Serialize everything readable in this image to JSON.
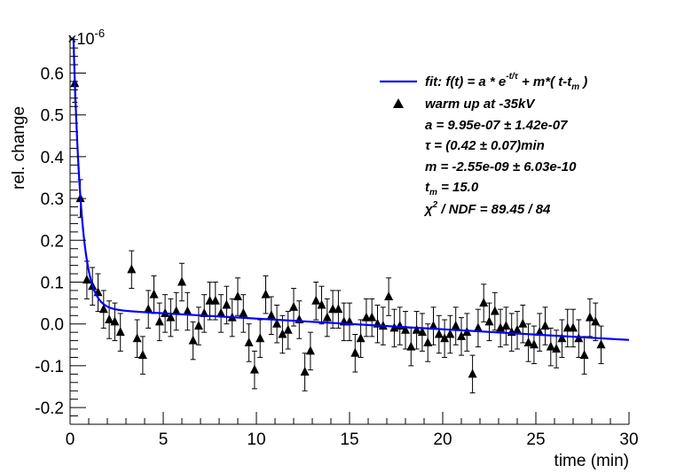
{
  "chart_data": {
    "type": "scatter",
    "title": "",
    "xlabel": "time (min)",
    "ylabel": "rel. change",
    "y_multiplier": "×10",
    "y_multiplier_exp": "-6",
    "xlim": [
      0,
      30
    ],
    "ylim": [
      -0.24,
      0.69
    ],
    "xticks": [
      0,
      5,
      10,
      15,
      20,
      25,
      30
    ],
    "xtick_labels": [
      "0",
      "5",
      "10",
      "15",
      "20",
      "25",
      "30"
    ],
    "yticks": [
      -0.2,
      -0.1,
      0.0,
      0.1,
      0.2,
      0.3,
      0.4,
      0.5,
      0.6
    ],
    "ytick_labels": [
      "-0.2",
      "-0.1",
      "0.0",
      "0.1",
      "0.2",
      "0.3",
      "0.4",
      "0.5",
      "0.6"
    ],
    "grid": false,
    "legend_position": "top-right",
    "fit": {
      "name": "fit",
      "color": "#0000ff",
      "a": 0.995,
      "tau": 0.42,
      "m": -0.00255,
      "tm": 15.0
    },
    "series": [
      {
        "name": "warm up at -35kV",
        "marker": "triangle",
        "color": "#000000",
        "points": [
          {
            "x": 0.25,
            "y": 0.575,
            "err": 0.045
          },
          {
            "x": 0.55,
            "y": 0.3,
            "err": 0.045
          },
          {
            "x": 0.9,
            "y": 0.105,
            "err": 0.045
          },
          {
            "x": 1.2,
            "y": 0.09,
            "err": 0.045
          },
          {
            "x": 1.5,
            "y": 0.075,
            "err": 0.045
          },
          {
            "x": 1.8,
            "y": 0.035,
            "err": 0.045
          },
          {
            "x": 2.1,
            "y": 0.01,
            "err": 0.045
          },
          {
            "x": 2.4,
            "y": 0.005,
            "err": 0.045
          },
          {
            "x": 2.7,
            "y": -0.02,
            "err": 0.045
          },
          {
            "x": 3.3,
            "y": 0.13,
            "err": 0.045
          },
          {
            "x": 3.6,
            "y": -0.035,
            "err": 0.045
          },
          {
            "x": 3.9,
            "y": -0.075,
            "err": 0.045
          },
          {
            "x": 4.2,
            "y": 0.035,
            "err": 0.045
          },
          {
            "x": 4.5,
            "y": 0.07,
            "err": 0.045
          },
          {
            "x": 4.8,
            "y": 0.005,
            "err": 0.045
          },
          {
            "x": 5.1,
            "y": 0.025,
            "err": 0.045
          },
          {
            "x": 5.4,
            "y": 0.015,
            "err": 0.045
          },
          {
            "x": 5.7,
            "y": 0.03,
            "err": 0.045
          },
          {
            "x": 6.0,
            "y": 0.1,
            "err": 0.045
          },
          {
            "x": 6.3,
            "y": 0.03,
            "err": 0.045
          },
          {
            "x": 6.6,
            "y": -0.04,
            "err": 0.045
          },
          {
            "x": 6.9,
            "y": -0.005,
            "err": 0.045
          },
          {
            "x": 7.2,
            "y": 0.025,
            "err": 0.045
          },
          {
            "x": 7.5,
            "y": 0.055,
            "err": 0.045
          },
          {
            "x": 7.8,
            "y": 0.055,
            "err": 0.045
          },
          {
            "x": 8.1,
            "y": 0.025,
            "err": 0.045
          },
          {
            "x": 8.4,
            "y": 0.045,
            "err": 0.045
          },
          {
            "x": 8.7,
            "y": 0.015,
            "err": 0.045
          },
          {
            "x": 9.0,
            "y": 0.065,
            "err": 0.045
          },
          {
            "x": 9.3,
            "y": 0.025,
            "err": 0.045
          },
          {
            "x": 9.6,
            "y": -0.045,
            "err": 0.045
          },
          {
            "x": 9.9,
            "y": -0.11,
            "err": 0.045
          },
          {
            "x": 10.2,
            "y": -0.035,
            "err": 0.045
          },
          {
            "x": 10.5,
            "y": 0.07,
            "err": 0.045
          },
          {
            "x": 10.8,
            "y": 0.02,
            "err": 0.045
          },
          {
            "x": 11.1,
            "y": 0.0,
            "err": 0.045
          },
          {
            "x": 11.4,
            "y": -0.025,
            "err": 0.045
          },
          {
            "x": 11.7,
            "y": -0.015,
            "err": 0.045
          },
          {
            "x": 12.0,
            "y": 0.04,
            "err": 0.045
          },
          {
            "x": 12.3,
            "y": 0.01,
            "err": 0.045
          },
          {
            "x": 12.6,
            "y": -0.115,
            "err": 0.045
          },
          {
            "x": 12.9,
            "y": -0.065,
            "err": 0.045
          },
          {
            "x": 13.2,
            "y": 0.055,
            "err": 0.045
          },
          {
            "x": 13.5,
            "y": 0.045,
            "err": 0.045
          },
          {
            "x": 13.8,
            "y": 0.015,
            "err": 0.045
          },
          {
            "x": 14.1,
            "y": 0.035,
            "err": 0.045
          },
          {
            "x": 14.4,
            "y": 0.035,
            "err": 0.045
          },
          {
            "x": 14.7,
            "y": 0.005,
            "err": 0.045
          },
          {
            "x": 15.0,
            "y": 0.005,
            "err": 0.045
          },
          {
            "x": 15.3,
            "y": -0.07,
            "err": 0.045
          },
          {
            "x": 15.6,
            "y": -0.035,
            "err": 0.045
          },
          {
            "x": 15.9,
            "y": 0.015,
            "err": 0.045
          },
          {
            "x": 16.2,
            "y": 0.015,
            "err": 0.045
          },
          {
            "x": 16.5,
            "y": 0.0,
            "err": 0.045
          },
          {
            "x": 16.8,
            "y": -0.005,
            "err": 0.045
          },
          {
            "x": 17.1,
            "y": 0.065,
            "err": 0.045
          },
          {
            "x": 17.4,
            "y": -0.01,
            "err": 0.045
          },
          {
            "x": 17.7,
            "y": -0.005,
            "err": 0.045
          },
          {
            "x": 18.0,
            "y": -0.015,
            "err": 0.045
          },
          {
            "x": 18.3,
            "y": -0.055,
            "err": 0.045
          },
          {
            "x": 18.6,
            "y": -0.015,
            "err": 0.045
          },
          {
            "x": 18.9,
            "y": -0.02,
            "err": 0.045
          },
          {
            "x": 19.2,
            "y": -0.045,
            "err": 0.045
          },
          {
            "x": 19.5,
            "y": -0.005,
            "err": 0.045
          },
          {
            "x": 19.8,
            "y": -0.025,
            "err": 0.045
          },
          {
            "x": 20.1,
            "y": -0.035,
            "err": 0.045
          },
          {
            "x": 20.4,
            "y": -0.025,
            "err": 0.045
          },
          {
            "x": 20.7,
            "y": -0.005,
            "err": 0.045
          },
          {
            "x": 21.0,
            "y": -0.03,
            "err": 0.045
          },
          {
            "x": 21.3,
            "y": -0.02,
            "err": 0.045
          },
          {
            "x": 21.6,
            "y": -0.12,
            "err": 0.045
          },
          {
            "x": 21.9,
            "y": -0.01,
            "err": 0.045
          },
          {
            "x": 22.2,
            "y": 0.05,
            "err": 0.045
          },
          {
            "x": 22.5,
            "y": 0.005,
            "err": 0.045
          },
          {
            "x": 22.8,
            "y": 0.03,
            "err": 0.045
          },
          {
            "x": 23.1,
            "y": -0.01,
            "err": 0.045
          },
          {
            "x": 23.4,
            "y": -0.005,
            "err": 0.045
          },
          {
            "x": 23.7,
            "y": -0.02,
            "err": 0.045
          },
          {
            "x": 24.0,
            "y": -0.015,
            "err": 0.045
          },
          {
            "x": 24.3,
            "y": 0.0,
            "err": 0.045
          },
          {
            "x": 24.6,
            "y": -0.045,
            "err": 0.045
          },
          {
            "x": 24.9,
            "y": -0.05,
            "err": 0.045
          },
          {
            "x": 25.2,
            "y": -0.02,
            "err": 0.045
          },
          {
            "x": 25.5,
            "y": -0.005,
            "err": 0.045
          },
          {
            "x": 25.8,
            "y": -0.055,
            "err": 0.045
          },
          {
            "x": 26.1,
            "y": -0.06,
            "err": 0.045
          },
          {
            "x": 26.4,
            "y": -0.035,
            "err": 0.045
          },
          {
            "x": 26.7,
            "y": -0.01,
            "err": 0.045
          },
          {
            "x": 27.0,
            "y": -0.01,
            "err": 0.045
          },
          {
            "x": 27.3,
            "y": -0.035,
            "err": 0.045
          },
          {
            "x": 27.6,
            "y": -0.075,
            "err": 0.045
          },
          {
            "x": 27.9,
            "y": 0.015,
            "err": 0.045
          },
          {
            "x": 28.2,
            "y": 0.005,
            "err": 0.045
          },
          {
            "x": 28.5,
            "y": -0.05,
            "err": 0.045
          }
        ]
      }
    ],
    "legend": {
      "fit_label": "fit: f(t) = a * e",
      "fit_exp": "-t/τ",
      "fit_label_mid": " + m*( t-t",
      "fit_sub": "m",
      "fit_label_end": " )",
      "data_label": "warm up at -35kV",
      "param_a": "a = 9.95e-07 ± 1.42e-07",
      "param_tau": "τ = (0.42 ± 0.07)min",
      "param_m": "m = -2.55e-09 ± 6.03e-10",
      "param_tm_pre": "t",
      "param_tm_sub": "m",
      "param_tm_post": " = 15.0",
      "param_chi_pre": "χ",
      "param_chi_sup": "2",
      "param_chi_post": " / NDF = 89.45 / 84"
    }
  }
}
